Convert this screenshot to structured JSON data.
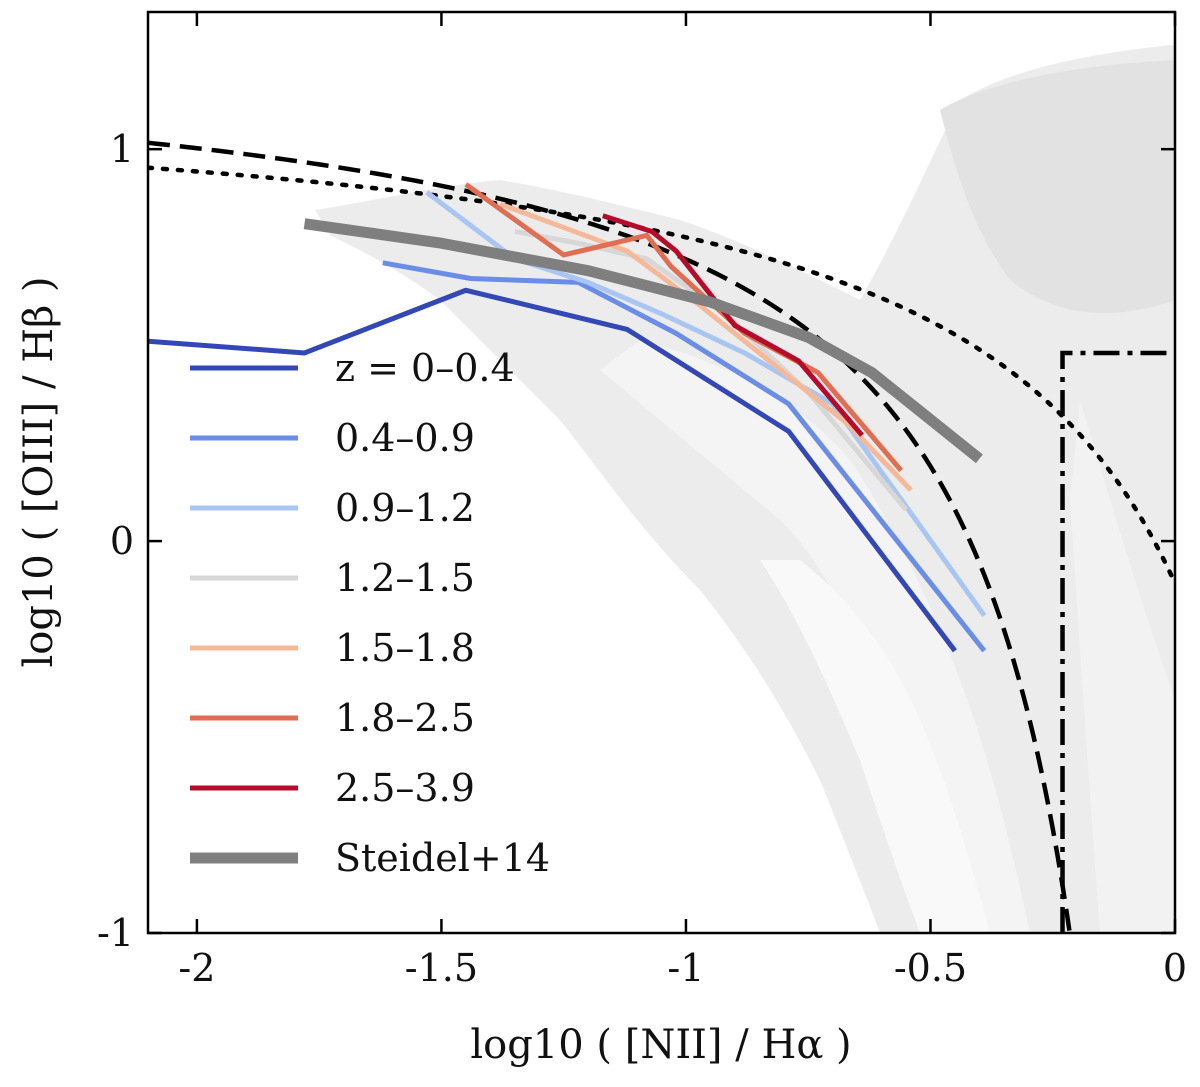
{
  "chart_data": {
    "type": "line",
    "title": "",
    "xlabel": "log10 ( [NII] / Hα )",
    "ylabel": "log10 ( [OIII] / Hβ )",
    "xlim": [
      -2.1,
      0.0
    ],
    "ylim": [
      -1.0,
      1.35
    ],
    "x_ticks": [
      -2,
      -1.5,
      -1,
      -0.5,
      0
    ],
    "x_tick_labels": [
      "-2",
      "-1.5",
      "-1",
      "-0.5",
      "0"
    ],
    "y_ticks": [
      -1,
      0,
      1
    ],
    "y_tick_labels": [
      "-1",
      "0",
      "1"
    ],
    "grid": false,
    "legend_position": "left",
    "series": [
      {
        "name": "z = 0–0.4",
        "color": "#3347b5",
        "width": 5,
        "x": [
          -2.1,
          -1.78,
          -1.45,
          -1.12,
          -0.79,
          -0.45
        ],
        "y": [
          0.51,
          0.48,
          0.64,
          0.54,
          0.28,
          -0.28
        ]
      },
      {
        "name": "0.4–0.9",
        "color": "#6a8ee8",
        "width": 5,
        "x": [
          -1.62,
          -1.44,
          -1.22,
          -1.02,
          -0.79,
          -0.39
        ],
        "y": [
          0.71,
          0.67,
          0.66,
          0.53,
          0.35,
          -0.28
        ]
      },
      {
        "name": "0.9–1.2",
        "color": "#a9c5f2",
        "width": 5,
        "x": [
          -1.53,
          -1.35,
          -1.2,
          -1.05,
          -0.88,
          -0.7,
          -0.39
        ],
        "y": [
          0.89,
          0.72,
          0.66,
          0.58,
          0.48,
          0.35,
          -0.19
        ]
      },
      {
        "name": "1.2–1.5",
        "color": "#d7d7d7",
        "width": 5,
        "x": [
          -1.35,
          -1.22,
          -1.08,
          -0.92,
          -0.75,
          -0.55
        ],
        "y": [
          0.79,
          0.76,
          0.72,
          0.58,
          0.38,
          0.08
        ]
      },
      {
        "name": "1.5–1.8",
        "color": "#f5b99a",
        "width": 5,
        "x": [
          -1.38,
          -1.25,
          -1.12,
          -0.97,
          -0.82,
          -0.67,
          -0.54
        ],
        "y": [
          0.86,
          0.8,
          0.74,
          0.6,
          0.45,
          0.3,
          0.13
        ]
      },
      {
        "name": "1.8–2.5",
        "color": "#e06e52",
        "width": 5,
        "x": [
          -1.45,
          -1.25,
          -1.08,
          -1.03,
          -0.88,
          -0.73,
          -0.56
        ],
        "y": [
          0.91,
          0.73,
          0.78,
          0.7,
          0.53,
          0.43,
          0.18
        ]
      },
      {
        "name": "2.5–3.9",
        "color": "#b40c2a",
        "width": 5,
        "x": [
          -1.17,
          -1.07,
          -1.02,
          -0.9,
          -0.77,
          -0.64
        ],
        "y": [
          0.83,
          0.79,
          0.74,
          0.55,
          0.46,
          0.27
        ]
      },
      {
        "name": "Steidel+14",
        "color": "#7f7f7f",
        "width": 11,
        "x": [
          -1.78,
          -1.5,
          -1.2,
          -0.95,
          -0.75,
          -0.62,
          -0.53,
          -0.4
        ],
        "y": [
          0.81,
          0.76,
          0.69,
          0.61,
          0.52,
          0.43,
          0.34,
          0.21
        ]
      }
    ],
    "reference_lines": [
      {
        "name": "kauffmann-dashed",
        "dash": "22 10",
        "color": "#000000"
      },
      {
        "name": "kewley-dotted",
        "dash": "4 11",
        "color": "#000000"
      },
      {
        "name": "agn-dashdot",
        "dash": "26 8 5 8",
        "color": "#000000",
        "x": [
          -0.23,
          -0.23,
          0.0
        ],
        "y": [
          -1.0,
          0.48,
          0.48
        ]
      }
    ],
    "background_density": {
      "description_colors": [
        "#f5f5f5",
        "#ececec",
        "#e0e0e0",
        "#d3d3d3"
      ]
    }
  }
}
